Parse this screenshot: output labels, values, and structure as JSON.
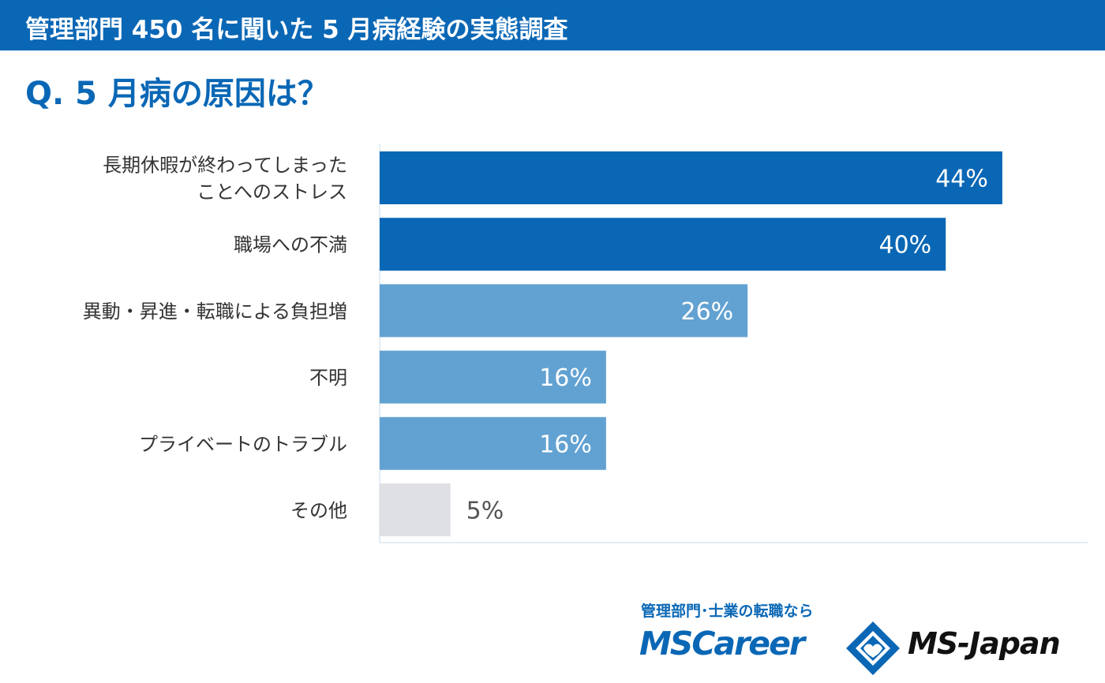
{
  "header": {
    "title": "管理部門 450 名に聞いた 5 月病経験の実態調査"
  },
  "question": "Q. 5 月病の原因は？",
  "chart_data": {
    "type": "bar",
    "orientation": "horizontal",
    "categories": [
      [
        "長期休暇が終わってしまった",
        "ことへのストレス"
      ],
      [
        "職場への不満"
      ],
      [
        "異動・昇進・転職による負担増"
      ],
      [
        "不明"
      ],
      [
        "プライベートのトラブル"
      ],
      [
        "その他"
      ]
    ],
    "values": [
      44,
      40,
      26,
      16,
      16,
      5
    ],
    "value_labels": [
      "44%",
      "40%",
      "26%",
      "16%",
      "16%",
      "5%"
    ],
    "xlim": [
      0,
      50
    ],
    "colors": [
      "#0a67b5",
      "#0a67b5",
      "#62a2d2",
      "#62a2d2",
      "#62a2d2",
      "#dfe0e4"
    ],
    "label_colors": [
      "#ffffff",
      "#ffffff",
      "#ffffff",
      "#ffffff",
      "#ffffff",
      "#555555"
    ],
    "grid": false
  },
  "footer": {
    "tagline": "管理部門･士業の転職なら",
    "brand_left": "MSCareer",
    "brand_right": "MS-Japan"
  },
  "colors": {
    "accent": "#0a67b5",
    "light_blue": "#62a2d2",
    "gray": "#dfe0e4",
    "axis": "#c9dbe8"
  }
}
